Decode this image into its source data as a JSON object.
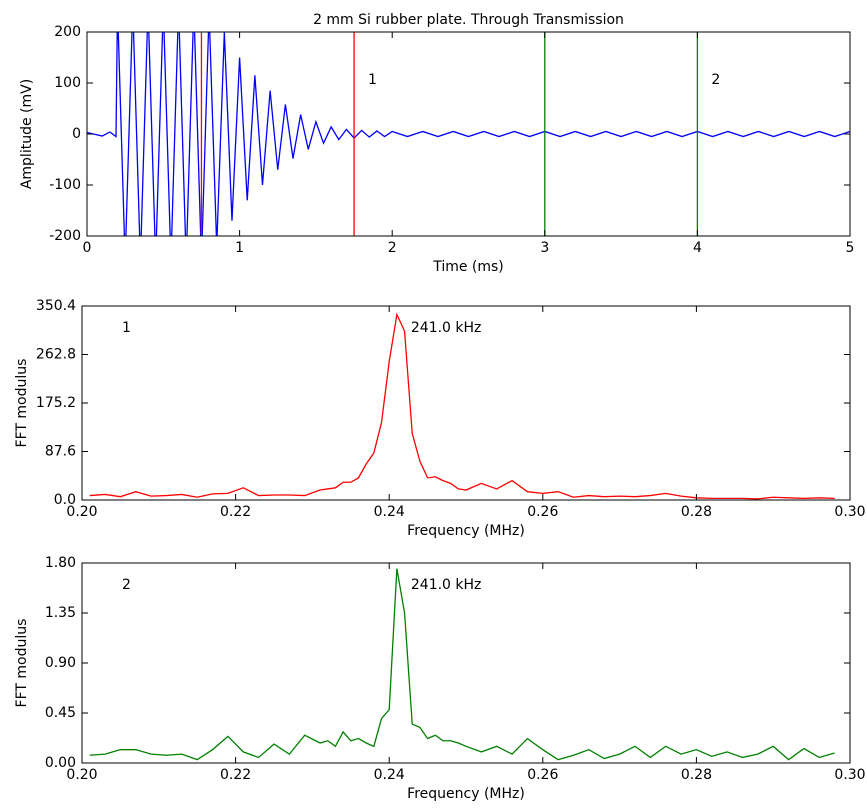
{
  "chart_data": [
    {
      "type": "line",
      "title": "2 mm Si rubber plate. Through Transmission",
      "xlabel": "Time (ms)",
      "ylabel": "Amplitude (mV)",
      "x": [
        0,
        0.1,
        0.15,
        0.19,
        0.2,
        0.25,
        0.3,
        0.35,
        0.4,
        0.45,
        0.5,
        0.55,
        0.6,
        0.65,
        0.7,
        0.75,
        0.8,
        0.85,
        0.9,
        0.95,
        1.0,
        1.05,
        1.1,
        1.15,
        1.2,
        1.25,
        1.3,
        1.35,
        1.4,
        1.45,
        1.5,
        1.55,
        1.6,
        1.65,
        1.7,
        1.75,
        1.8,
        1.85,
        1.9,
        1.95,
        2.0,
        2.1,
        2.2,
        2.3,
        2.4,
        2.5,
        2.6,
        2.7,
        2.8,
        2.9,
        3.0,
        3.1,
        3.2,
        3.3,
        3.4,
        3.5,
        3.6,
        3.7,
        3.8,
        3.9,
        4.0,
        4.1,
        4.2,
        4.3,
        4.4,
        4.5,
        4.6,
        4.7,
        4.8,
        4.9,
        5.0
      ],
      "values": [
        3,
        -4,
        4,
        -5,
        250,
        -250,
        250,
        -250,
        250,
        -250,
        250,
        -250,
        250,
        -250,
        250,
        -250,
        240,
        -220,
        200,
        -170,
        150,
        -130,
        115,
        -100,
        85,
        -70,
        58,
        -48,
        38,
        -30,
        24,
        -18,
        14,
        -11,
        9,
        -8,
        7,
        -6,
        6,
        -5,
        5,
        -5,
        5,
        -5,
        5,
        -5,
        5,
        -5,
        5,
        -5,
        5,
        -5,
        5,
        -5,
        5,
        -5,
        5,
        -5,
        5,
        -5,
        5,
        -5,
        5,
        -5,
        5,
        -5,
        5,
        -5,
        5,
        -5,
        5
      ],
      "color": "#0000ff",
      "xlim": [
        0,
        5
      ],
      "ylim": [
        -200,
        200
      ],
      "xticks": [
        0,
        1,
        2,
        3,
        4,
        5
      ],
      "yticks": [
        -200,
        -100,
        0,
        100,
        200
      ],
      "windows": [
        {
          "label": "1",
          "start": 0.75,
          "end": 1.75,
          "color": "#ff0000"
        },
        {
          "label": "2",
          "start": 3,
          "end": 4,
          "color": "#008000"
        }
      ]
    },
    {
      "type": "line",
      "xlabel": "Frequency (MHz)",
      "ylabel": "FFT modulus",
      "label": "1",
      "peak_label": "241.0 kHz",
      "x": [
        0.201,
        0.203,
        0.205,
        0.207,
        0.209,
        0.211,
        0.213,
        0.215,
        0.217,
        0.219,
        0.221,
        0.223,
        0.225,
        0.227,
        0.229,
        0.231,
        0.232,
        0.233,
        0.234,
        0.235,
        0.236,
        0.237,
        0.238,
        0.239,
        0.24,
        0.241,
        0.242,
        0.243,
        0.244,
        0.245,
        0.246,
        0.247,
        0.248,
        0.249,
        0.25,
        0.252,
        0.254,
        0.256,
        0.258,
        0.26,
        0.262,
        0.264,
        0.266,
        0.268,
        0.27,
        0.272,
        0.274,
        0.276,
        0.278,
        0.28,
        0.282,
        0.284,
        0.286,
        0.288,
        0.29,
        0.292,
        0.294,
        0.296,
        0.298
      ],
      "values": [
        8,
        10,
        6,
        15,
        7,
        8,
        10,
        5,
        11,
        12,
        22,
        8,
        9,
        9,
        8,
        18,
        20,
        22,
        32,
        32,
        40,
        65,
        85,
        140,
        250,
        335,
        305,
        120,
        70,
        40,
        42,
        35,
        30,
        20,
        18,
        30,
        20,
        35,
        15,
        12,
        15,
        5,
        8,
        6,
        7,
        6,
        8,
        12,
        7,
        4,
        3,
        3,
        3,
        2,
        5,
        4,
        3,
        4,
        3
      ],
      "color": "#ff0000",
      "xlim": [
        0.2,
        0.3
      ],
      "ylim": [
        0,
        350.4
      ],
      "xticks": [
        {
          "value": 0.2,
          "label": "0.20"
        },
        0.22,
        0.24,
        0.26,
        0.28,
        {
          "value": 0.3,
          "label": "0.30"
        }
      ],
      "yticks": [
        {
          "value": 0,
          "label": "0.0"
        },
        87.6,
        175.2,
        262.8,
        350.4
      ]
    },
    {
      "type": "line",
      "xlabel": "Frequency (MHz)",
      "ylabel": "FFT modulus",
      "label": "2",
      "peak_label": "241.0 kHz",
      "x": [
        0.201,
        0.203,
        0.205,
        0.207,
        0.209,
        0.211,
        0.213,
        0.215,
        0.217,
        0.219,
        0.221,
        0.223,
        0.225,
        0.227,
        0.229,
        0.231,
        0.232,
        0.233,
        0.234,
        0.235,
        0.236,
        0.237,
        0.238,
        0.239,
        0.24,
        0.241,
        0.242,
        0.243,
        0.244,
        0.245,
        0.246,
        0.247,
        0.248,
        0.249,
        0.25,
        0.252,
        0.254,
        0.256,
        0.258,
        0.26,
        0.262,
        0.264,
        0.266,
        0.268,
        0.27,
        0.272,
        0.274,
        0.276,
        0.278,
        0.28,
        0.282,
        0.284,
        0.286,
        0.288,
        0.29,
        0.292,
        0.294,
        0.296,
        0.298
      ],
      "values": [
        0.07,
        0.08,
        0.12,
        0.12,
        0.08,
        0.07,
        0.08,
        0.03,
        0.12,
        0.24,
        0.1,
        0.05,
        0.17,
        0.08,
        0.25,
        0.18,
        0.2,
        0.15,
        0.28,
        0.2,
        0.22,
        0.18,
        0.15,
        0.4,
        0.48,
        1.75,
        1.35,
        0.35,
        0.32,
        0.22,
        0.25,
        0.2,
        0.2,
        0.18,
        0.15,
        0.1,
        0.15,
        0.08,
        0.22,
        0.12,
        0.03,
        0.07,
        0.12,
        0.04,
        0.08,
        0.15,
        0.05,
        0.15,
        0.08,
        0.12,
        0.06,
        0.1,
        0.05,
        0.08,
        0.15,
        0.03,
        0.13,
        0.05,
        0.09
      ],
      "color": "#008000",
      "xlim": [
        0.2,
        0.3
      ],
      "ylim": [
        0,
        1.8
      ],
      "xticks": [
        {
          "value": 0.2,
          "label": "0.20"
        },
        0.22,
        0.24,
        0.26,
        0.28,
        {
          "value": 0.3,
          "label": "0.30"
        }
      ],
      "yticks": [
        {
          "value": 0,
          "label": "0.00"
        },
        0.45,
        {
          "value": 0.9,
          "label": "0.90"
        },
        1.35,
        {
          "value": 1.8,
          "label": "1.80"
        }
      ]
    }
  ]
}
